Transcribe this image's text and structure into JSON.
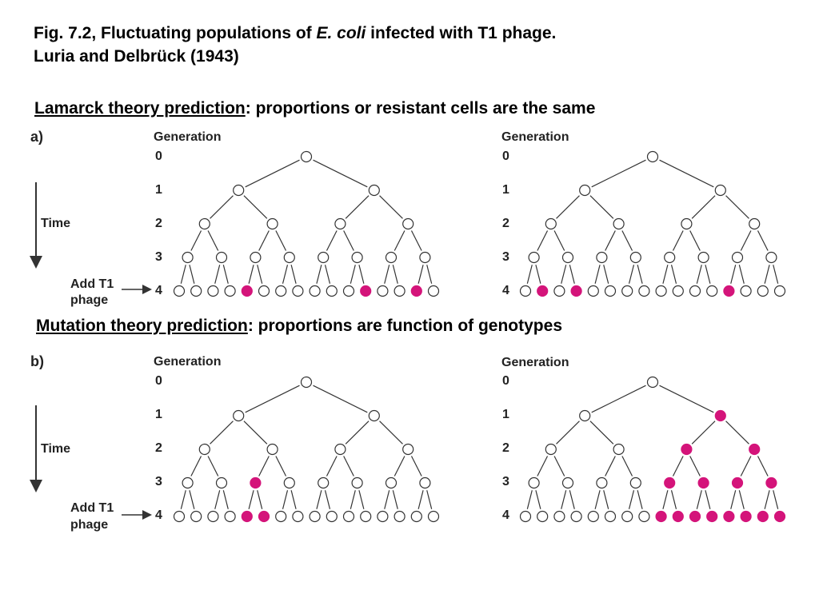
{
  "title": {
    "line1_prefix": "Fig. 7.2, Fluctuating populations of ",
    "line1_italic": "E. coli",
    "line1_suffix": " infected with T1 phage.",
    "line2": "Luria and Delbrück (1943)"
  },
  "lamarck": {
    "heading_underlined": "Lamarck theory prediction",
    "heading_rest": ": proportions or resistant cells are the same"
  },
  "mutation": {
    "heading_underlined": "Mutation theory prediction",
    "heading_rest": ":  proportions are function of genotypes"
  },
  "labels": {
    "generation": "Generation",
    "time": "Time",
    "add_t1": "Add T1",
    "phage": "phage",
    "panel_a": "a)",
    "panel_b": "b)",
    "gen_numbers": [
      "0",
      "1",
      "2",
      "3",
      "4"
    ]
  },
  "colors": {
    "resistant_fill": "#d4147a",
    "normal_stroke": "#333333",
    "line": "#333333"
  },
  "trees": [
    {
      "id": "a-left",
      "resistant": [
        [
          4,
          4
        ],
        [
          4,
          11
        ],
        [
          4,
          14
        ]
      ]
    },
    {
      "id": "a-right",
      "resistant": [
        [
          4,
          1
        ],
        [
          4,
          3
        ],
        [
          4,
          12
        ]
      ]
    },
    {
      "id": "b-left",
      "resistant": [
        [
          3,
          2
        ],
        [
          4,
          4
        ],
        [
          4,
          5
        ]
      ]
    },
    {
      "id": "b-right",
      "resistant": [
        [
          1,
          1
        ],
        [
          2,
          2
        ],
        [
          2,
          3
        ],
        [
          3,
          4
        ],
        [
          3,
          5
        ],
        [
          3,
          6
        ],
        [
          3,
          7
        ],
        [
          4,
          8
        ],
        [
          4,
          9
        ],
        [
          4,
          10
        ],
        [
          4,
          11
        ],
        [
          4,
          12
        ],
        [
          4,
          13
        ],
        [
          4,
          14
        ],
        [
          4,
          15
        ]
      ]
    }
  ]
}
